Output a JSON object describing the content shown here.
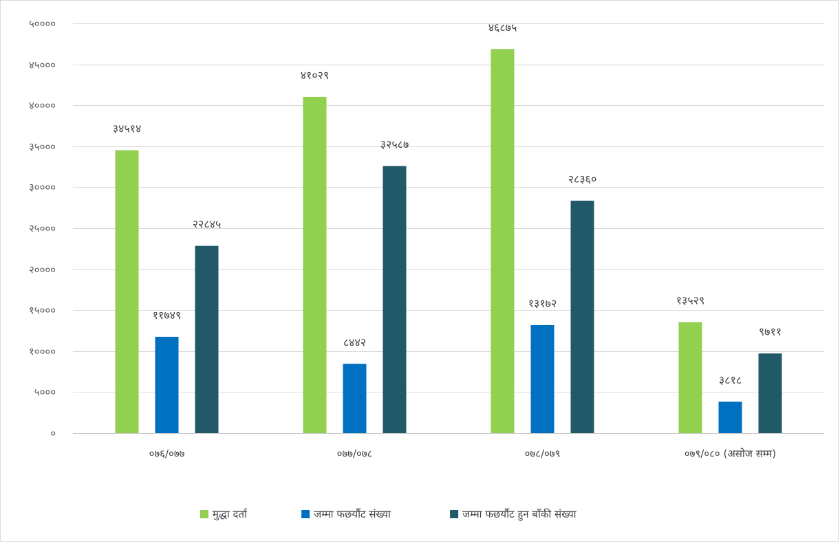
{
  "chart_data": {
    "type": "bar",
    "categories": [
      "०७६/०७७",
      "०७७/०७८",
      "०७८/०७९",
      "०७९/०८० (असोज सम्म)"
    ],
    "series": [
      {
        "name": "मुद्धा दर्ता",
        "color": "#92d050",
        "values": [
          34514,
          41029,
          46875,
          13529
        ],
        "labels": [
          "३४५१४",
          "४१०२९",
          "४६८७५",
          "१३५२९"
        ]
      },
      {
        "name": "जम्मा फछर्यौट संख्या",
        "color": "#0070c0",
        "values": [
          11749,
          8442,
          13172,
          3818
        ],
        "labels": [
          "११७४९",
          "८४४२",
          "१३१७२",
          "३८१८"
        ]
      },
      {
        "name": "जम्मा फछर्यौट हुन बाँकी संख्या",
        "color": "#215968",
        "values": [
          22845,
          32587,
          28360,
          9711
        ],
        "labels": [
          "२२८४५",
          "३२५८७",
          "२८३६०",
          "९७११"
        ]
      }
    ],
    "y_ticks": [
      {
        "value": 0,
        "label": "०"
      },
      {
        "value": 5000,
        "label": "५०००"
      },
      {
        "value": 10000,
        "label": "१००००"
      },
      {
        "value": 15000,
        "label": "१५०००"
      },
      {
        "value": 20000,
        "label": "२००००"
      },
      {
        "value": 25000,
        "label": "२५०००"
      },
      {
        "value": 30000,
        "label": "३००००"
      },
      {
        "value": 35000,
        "label": "३५०००"
      },
      {
        "value": 40000,
        "label": "४००००"
      },
      {
        "value": 45000,
        "label": "४५०००"
      },
      {
        "value": 50000,
        "label": "५००००"
      }
    ],
    "ylim": [
      0,
      50000
    ],
    "grid": true,
    "legend_position": "bottom",
    "title": "",
    "xlabel": "",
    "ylabel": ""
  }
}
